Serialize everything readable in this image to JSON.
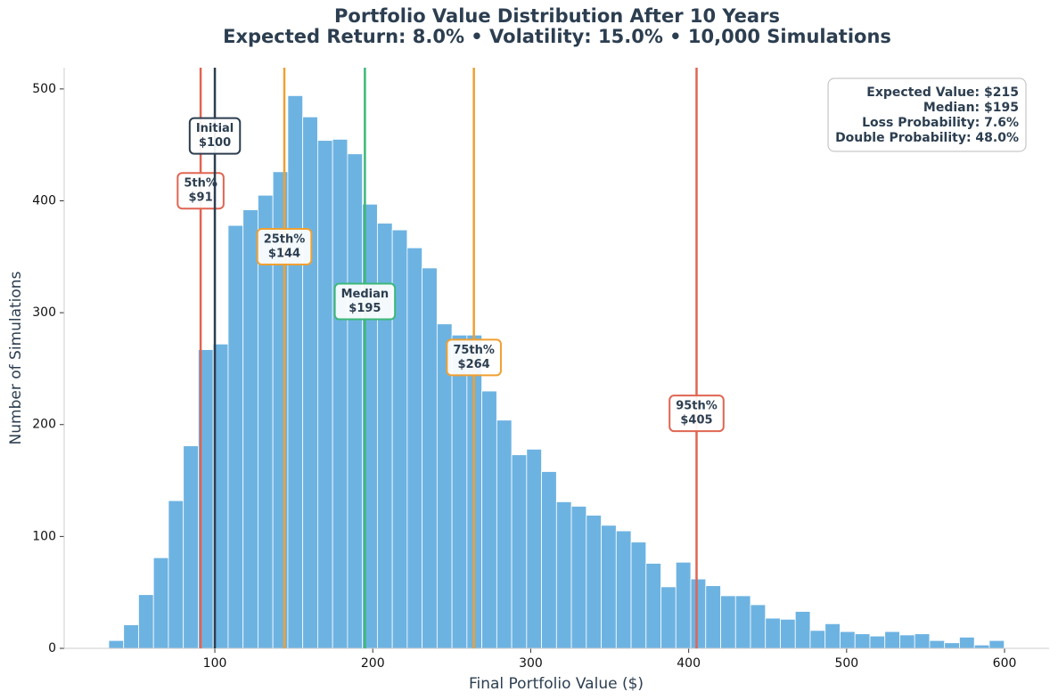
{
  "chart_data": {
    "type": "histogram",
    "title": "Portfolio Value Distribution After 10 Years",
    "subtitle": "Expected Return: 8.0% • Volatility: 15.0% • 10,000 Simulations",
    "x_label": "Final Portfolio Value ($)",
    "y_label": "Number of Simulations",
    "color": "#6db3e2",
    "bins": [
      32.8,
      42.25,
      51.7,
      61.15,
      70.6,
      80.05,
      89.5,
      98.95,
      108.4,
      117.85,
      127.3,
      136.75,
      146.2,
      155.65,
      165.1,
      174.55,
      184,
      193.45,
      202.9,
      212.35,
      221.8,
      231.25,
      240.7,
      250.15,
      259.6,
      269.05,
      278.5,
      287.95,
      297.4,
      306.85,
      316.3,
      325.75,
      335.2,
      344.65,
      354.1,
      363.55,
      373,
      382.45,
      391.9,
      401.35,
      410.8,
      420.25,
      429.7,
      439.15,
      448.6,
      458.05,
      467.5,
      476.95,
      486.4,
      495.85,
      505.3,
      514.75,
      524.2,
      533.65,
      543.1,
      552.55,
      562,
      571.45,
      580.9,
      590.35,
      599.8
    ],
    "values": [
      7,
      21,
      48,
      81,
      132,
      181,
      267,
      272,
      378,
      392,
      405,
      426,
      494,
      475,
      454,
      455,
      442,
      397,
      380,
      374,
      358,
      340,
      290,
      280,
      280,
      230,
      204,
      173,
      178,
      158,
      131,
      127,
      119,
      110,
      105,
      95,
      76,
      55,
      77,
      62,
      56,
      47,
      47,
      39,
      27,
      26,
      33,
      16,
      22,
      15,
      13,
      11,
      15,
      12,
      13,
      7,
      5,
      10,
      3,
      7
    ],
    "xlim": [
      4.6,
      628.2
    ],
    "ylim": [
      0,
      519
    ],
    "xticks": [
      100,
      200,
      300,
      400,
      500,
      600
    ],
    "yticks": [
      0,
      100,
      200,
      300,
      400,
      500
    ],
    "reference_lines": [
      {
        "name": "5th%",
        "x": 91,
        "label": "$91",
        "color": "#e06552"
      },
      {
        "name": "Initial",
        "x": 100,
        "label": "$100",
        "color": "#2c3e50"
      },
      {
        "name": "25th%",
        "x": 144,
        "label": "$144",
        "color": "#f0a030"
      },
      {
        "name": "Median",
        "x": 195,
        "label": "$195",
        "color": "#3cb878"
      },
      {
        "name": "75th%",
        "x": 264,
        "label": "$264",
        "color": "#f0a030"
      },
      {
        "name": "95th%",
        "x": 405,
        "label": "$405",
        "color": "#e06552"
      }
    ],
    "info_box": [
      "Expected Value: $215",
      "Median: $195",
      "Loss Probability: 7.6%",
      "Double Probability: 48.0%"
    ]
  }
}
